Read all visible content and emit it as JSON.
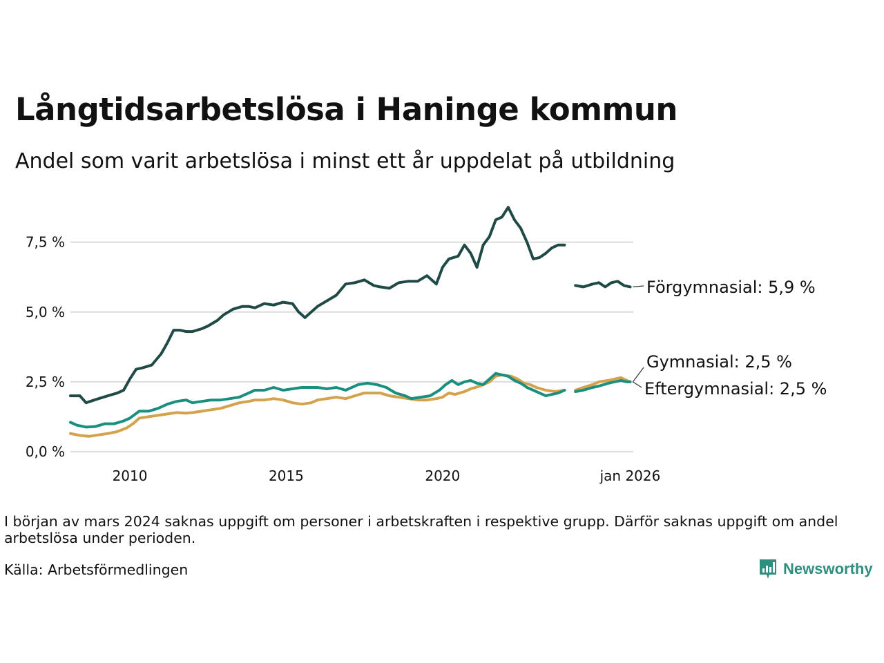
{
  "chart_data": {
    "type": "line",
    "title": "Långtidsarbetslösa i Haninge kommun",
    "subtitle": "Andel som varit arbetslösa i minst ett år uppdelat på utbildning",
    "y_ticks": [
      "0,0 %",
      "2,5 %",
      "5,0 %",
      "7,5 %"
    ],
    "y_tick_values": [
      0,
      2.5,
      5.0,
      7.5
    ],
    "x_ticks": [
      "2010",
      "2015",
      "2020",
      "jan 2026"
    ],
    "x_tick_values": [
      2010,
      2015,
      2020,
      2026
    ],
    "xlim": [
      2008.1,
      2026.1
    ],
    "ylim": [
      0,
      9.0
    ],
    "gap": [
      2023.92,
      2024.25
    ],
    "series": [
      {
        "name": "Förgymnasial",
        "label": "Förgymnasial: 5,9 %",
        "color": "#1f4a45",
        "points": [
          [
            2008.1,
            2.0
          ],
          [
            2008.4,
            2.0
          ],
          [
            2008.6,
            1.75
          ],
          [
            2009.0,
            1.9
          ],
          [
            2009.3,
            2.0
          ],
          [
            2009.6,
            2.1
          ],
          [
            2009.8,
            2.2
          ],
          [
            2010.0,
            2.6
          ],
          [
            2010.2,
            2.95
          ],
          [
            2010.4,
            3.0
          ],
          [
            2010.7,
            3.1
          ],
          [
            2011.0,
            3.5
          ],
          [
            2011.2,
            3.9
          ],
          [
            2011.4,
            4.35
          ],
          [
            2011.6,
            4.35
          ],
          [
            2011.8,
            4.3
          ],
          [
            2012.0,
            4.3
          ],
          [
            2012.3,
            4.4
          ],
          [
            2012.5,
            4.5
          ],
          [
            2012.8,
            4.7
          ],
          [
            2013.0,
            4.9
          ],
          [
            2013.3,
            5.1
          ],
          [
            2013.6,
            5.2
          ],
          [
            2013.8,
            5.2
          ],
          [
            2014.0,
            5.15
          ],
          [
            2014.3,
            5.3
          ],
          [
            2014.6,
            5.25
          ],
          [
            2014.9,
            5.35
          ],
          [
            2015.2,
            5.3
          ],
          [
            2015.4,
            5.0
          ],
          [
            2015.6,
            4.8
          ],
          [
            2015.8,
            5.0
          ],
          [
            2016.0,
            5.2
          ],
          [
            2016.3,
            5.4
          ],
          [
            2016.6,
            5.6
          ],
          [
            2016.9,
            6.0
          ],
          [
            2017.2,
            6.05
          ],
          [
            2017.5,
            6.15
          ],
          [
            2017.8,
            5.95
          ],
          [
            2018.0,
            5.9
          ],
          [
            2018.3,
            5.85
          ],
          [
            2018.6,
            6.05
          ],
          [
            2018.9,
            6.1
          ],
          [
            2019.2,
            6.1
          ],
          [
            2019.5,
            6.3
          ],
          [
            2019.8,
            6.0
          ],
          [
            2020.0,
            6.6
          ],
          [
            2020.2,
            6.9
          ],
          [
            2020.5,
            7.0
          ],
          [
            2020.7,
            7.4
          ],
          [
            2020.9,
            7.1
          ],
          [
            2021.1,
            6.6
          ],
          [
            2021.3,
            7.4
          ],
          [
            2021.5,
            7.7
          ],
          [
            2021.7,
            8.3
          ],
          [
            2021.9,
            8.4
          ],
          [
            2022.1,
            8.75
          ],
          [
            2022.3,
            8.3
          ],
          [
            2022.5,
            8.0
          ],
          [
            2022.7,
            7.5
          ],
          [
            2022.9,
            6.9
          ],
          [
            2023.1,
            6.95
          ],
          [
            2023.3,
            7.1
          ],
          [
            2023.5,
            7.3
          ],
          [
            2023.7,
            7.4
          ],
          [
            2023.9,
            7.4
          ],
          [
            null,
            null
          ],
          [
            2024.25,
            5.95
          ],
          [
            2024.5,
            5.9
          ],
          [
            2024.8,
            6.0
          ],
          [
            2025.0,
            6.05
          ],
          [
            2025.2,
            5.9
          ],
          [
            2025.4,
            6.05
          ],
          [
            2025.6,
            6.1
          ],
          [
            2025.8,
            5.95
          ],
          [
            2026.0,
            5.9
          ]
        ]
      },
      {
        "name": "Gymnasial",
        "label": "Gymnasial: 2,5 %",
        "color": "#1a8f7f",
        "points": [
          [
            2008.1,
            1.05
          ],
          [
            2008.3,
            0.95
          ],
          [
            2008.6,
            0.88
          ],
          [
            2008.9,
            0.9
          ],
          [
            2009.2,
            1.0
          ],
          [
            2009.5,
            1.0
          ],
          [
            2009.8,
            1.1
          ],
          [
            2010.0,
            1.2
          ],
          [
            2010.3,
            1.45
          ],
          [
            2010.6,
            1.45
          ],
          [
            2010.9,
            1.55
          ],
          [
            2011.2,
            1.7
          ],
          [
            2011.5,
            1.8
          ],
          [
            2011.8,
            1.85
          ],
          [
            2012.0,
            1.75
          ],
          [
            2012.3,
            1.8
          ],
          [
            2012.6,
            1.85
          ],
          [
            2012.9,
            1.85
          ],
          [
            2013.2,
            1.9
          ],
          [
            2013.5,
            1.95
          ],
          [
            2013.8,
            2.1
          ],
          [
            2014.0,
            2.2
          ],
          [
            2014.3,
            2.2
          ],
          [
            2014.6,
            2.3
          ],
          [
            2014.9,
            2.2
          ],
          [
            2015.2,
            2.25
          ],
          [
            2015.5,
            2.3
          ],
          [
            2015.8,
            2.3
          ],
          [
            2016.0,
            2.3
          ],
          [
            2016.3,
            2.25
          ],
          [
            2016.6,
            2.3
          ],
          [
            2016.9,
            2.2
          ],
          [
            2017.1,
            2.3
          ],
          [
            2017.3,
            2.4
          ],
          [
            2017.6,
            2.45
          ],
          [
            2017.9,
            2.4
          ],
          [
            2018.2,
            2.3
          ],
          [
            2018.5,
            2.1
          ],
          [
            2018.8,
            2.0
          ],
          [
            2019.0,
            1.9
          ],
          [
            2019.3,
            1.95
          ],
          [
            2019.6,
            2.0
          ],
          [
            2019.9,
            2.2
          ],
          [
            2020.1,
            2.4
          ],
          [
            2020.3,
            2.55
          ],
          [
            2020.5,
            2.4
          ],
          [
            2020.7,
            2.5
          ],
          [
            2020.9,
            2.55
          ],
          [
            2021.1,
            2.45
          ],
          [
            2021.3,
            2.4
          ],
          [
            2021.5,
            2.6
          ],
          [
            2021.7,
            2.8
          ],
          [
            2021.9,
            2.75
          ],
          [
            2022.1,
            2.7
          ],
          [
            2022.3,
            2.55
          ],
          [
            2022.5,
            2.45
          ],
          [
            2022.7,
            2.3
          ],
          [
            2022.9,
            2.2
          ],
          [
            2023.1,
            2.1
          ],
          [
            2023.3,
            2.0
          ],
          [
            2023.5,
            2.05
          ],
          [
            2023.7,
            2.1
          ],
          [
            2023.9,
            2.2
          ],
          [
            null,
            null
          ],
          [
            2024.25,
            2.15
          ],
          [
            2024.5,
            2.2
          ],
          [
            2024.8,
            2.3
          ],
          [
            2025.0,
            2.35
          ],
          [
            2025.3,
            2.45
          ],
          [
            2025.5,
            2.5
          ],
          [
            2025.7,
            2.55
          ],
          [
            2025.9,
            2.5
          ],
          [
            2026.0,
            2.5
          ]
        ]
      },
      {
        "name": "Eftergymnasial",
        "label": "Eftergymnasial: 2,5 %",
        "color": "#d4a24c",
        "points": [
          [
            2008.1,
            0.65
          ],
          [
            2008.4,
            0.58
          ],
          [
            2008.7,
            0.55
          ],
          [
            2009.0,
            0.6
          ],
          [
            2009.3,
            0.65
          ],
          [
            2009.6,
            0.72
          ],
          [
            2009.9,
            0.85
          ],
          [
            2010.1,
            1.0
          ],
          [
            2010.3,
            1.2
          ],
          [
            2010.6,
            1.25
          ],
          [
            2010.9,
            1.3
          ],
          [
            2011.2,
            1.35
          ],
          [
            2011.5,
            1.4
          ],
          [
            2011.8,
            1.38
          ],
          [
            2012.0,
            1.4
          ],
          [
            2012.3,
            1.45
          ],
          [
            2012.6,
            1.5
          ],
          [
            2012.9,
            1.55
          ],
          [
            2013.2,
            1.65
          ],
          [
            2013.5,
            1.75
          ],
          [
            2013.8,
            1.8
          ],
          [
            2014.0,
            1.85
          ],
          [
            2014.3,
            1.85
          ],
          [
            2014.6,
            1.9
          ],
          [
            2014.9,
            1.85
          ],
          [
            2015.2,
            1.75
          ],
          [
            2015.5,
            1.7
          ],
          [
            2015.8,
            1.75
          ],
          [
            2016.0,
            1.85
          ],
          [
            2016.3,
            1.9
          ],
          [
            2016.6,
            1.95
          ],
          [
            2016.9,
            1.9
          ],
          [
            2017.2,
            2.0
          ],
          [
            2017.5,
            2.1
          ],
          [
            2017.8,
            2.1
          ],
          [
            2018.0,
            2.1
          ],
          [
            2018.3,
            2.0
          ],
          [
            2018.6,
            1.95
          ],
          [
            2018.9,
            1.9
          ],
          [
            2019.2,
            1.85
          ],
          [
            2019.5,
            1.85
          ],
          [
            2019.8,
            1.9
          ],
          [
            2020.0,
            1.95
          ],
          [
            2020.2,
            2.1
          ],
          [
            2020.4,
            2.05
          ],
          [
            2020.7,
            2.15
          ],
          [
            2020.9,
            2.25
          ],
          [
            2021.2,
            2.35
          ],
          [
            2021.5,
            2.5
          ],
          [
            2021.7,
            2.7
          ],
          [
            2021.9,
            2.75
          ],
          [
            2022.2,
            2.7
          ],
          [
            2022.4,
            2.6
          ],
          [
            2022.6,
            2.45
          ],
          [
            2022.8,
            2.4
          ],
          [
            2023.0,
            2.3
          ],
          [
            2023.3,
            2.2
          ],
          [
            2023.6,
            2.15
          ],
          [
            2023.9,
            2.2
          ],
          [
            null,
            null
          ],
          [
            2024.25,
            2.2
          ],
          [
            2024.5,
            2.3
          ],
          [
            2024.8,
            2.4
          ],
          [
            2025.0,
            2.5
          ],
          [
            2025.3,
            2.55
          ],
          [
            2025.5,
            2.6
          ],
          [
            2025.7,
            2.65
          ],
          [
            2025.9,
            2.55
          ],
          [
            2026.0,
            2.5
          ]
        ]
      }
    ]
  },
  "note": "I början av mars 2024 saknas uppgift om personer i arbetskraften i respektive grupp. Därför saknas uppgift om andel arbetslösa under perioden.",
  "source": "Källa: Arbetsförmedlingen",
  "brand": {
    "name": "Newsworthy",
    "icon": "newsworthy-logo-icon",
    "color": "#2e8f7f"
  }
}
